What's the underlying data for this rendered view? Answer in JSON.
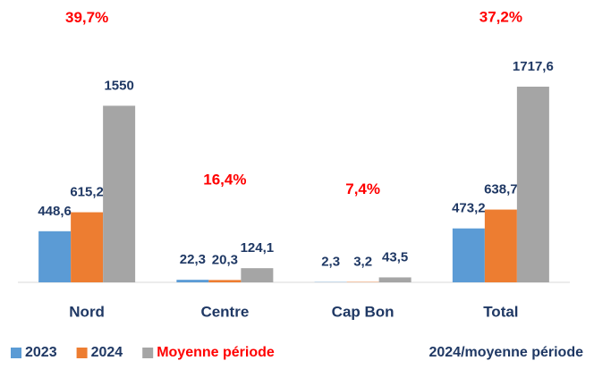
{
  "chart_data": {
    "type": "bar",
    "categories": [
      "Nord",
      "Centre",
      "Cap Bon",
      "Total"
    ],
    "series": [
      {
        "name": "2023",
        "color": "#5b9bd5",
        "values": [
          448.6,
          22.3,
          2.3,
          473.2
        ],
        "value_labels": [
          "448,6",
          "22,3",
          "2,3",
          "473,2"
        ]
      },
      {
        "name": "2024",
        "color": "#ed7d31",
        "values": [
          615.2,
          20.3,
          3.2,
          638.7
        ],
        "value_labels": [
          "615,2",
          "20,3",
          "3,2",
          "638,7"
        ]
      },
      {
        "name": "Moyenne période",
        "color": "#a5a5a5",
        "label_color": "#ff0000",
        "values": [
          1550,
          124.1,
          43.5,
          1717.6
        ],
        "value_labels": [
          "1550",
          "124,1",
          "43,5",
          "1717,6"
        ]
      }
    ],
    "annotation_series": {
      "name": "2024/moyenne période",
      "color": "#ff0000",
      "values": [
        39.7,
        16.4,
        7.4,
        37.2
      ],
      "value_labels": [
        "39,7%",
        "16,4%",
        "7,4%",
        "37,2%"
      ]
    }
  }
}
